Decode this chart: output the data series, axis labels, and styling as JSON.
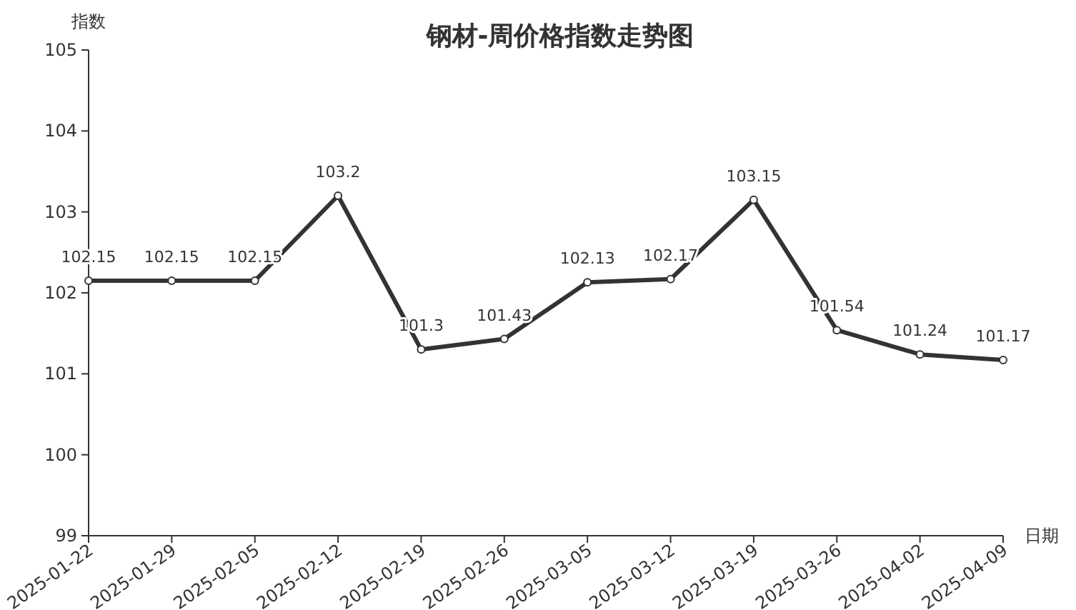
{
  "chart_data": {
    "type": "line",
    "title": "钢材-周价格指数走势图",
    "ylabel": "指数",
    "xlabel": "日期",
    "categories": [
      "2025-01-22",
      "2025-01-29",
      "2025-02-05",
      "2025-02-12",
      "2025-02-19",
      "2025-02-26",
      "2025-03-05",
      "2025-03-12",
      "2025-03-19",
      "2025-03-26",
      "2025-04-02",
      "2025-04-09"
    ],
    "series": [
      {
        "color": "#333333",
        "values": [
          102.15,
          102.15,
          102.15,
          103.2,
          101.3,
          101.43,
          102.13,
          102.17,
          103.15,
          101.54,
          101.24,
          101.17
        ]
      }
    ],
    "ylim": [
      99,
      105
    ],
    "yticks": [
      99,
      100,
      101,
      102,
      103,
      104,
      105
    ],
    "data_labels": true,
    "marker": "circle",
    "line_style": "solid",
    "grid": false
  }
}
